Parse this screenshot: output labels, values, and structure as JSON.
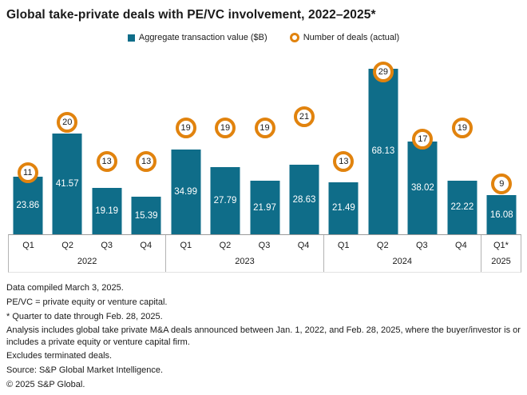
{
  "title": "Global take-private deals with PE/VC involvement, 2022–2025*",
  "legend": {
    "value_label": "Aggregate transaction value ($B)",
    "deals_label": "Number of deals (actual)"
  },
  "colors": {
    "bar_teal": "#0f6d89",
    "deal_ring_orange": "#e1830e",
    "text": "#1a1a1a",
    "divider": "#b3b3b3"
  },
  "chart_data": {
    "type": "bar",
    "title": "Global take-private deals with PE/VC involvement, 2022–2025*",
    "categories": [
      "Q1 2022",
      "Q2 2022",
      "Q3 2022",
      "Q4 2022",
      "Q1 2023",
      "Q2 2023",
      "Q3 2023",
      "Q4 2023",
      "Q1 2024",
      "Q2 2024",
      "Q3 2024",
      "Q4 2024",
      "Q1* 2025"
    ],
    "series": [
      {
        "name": "Aggregate transaction value ($B)",
        "type": "bar",
        "values": [
          23.86,
          41.57,
          19.19,
          15.39,
          34.99,
          27.79,
          21.97,
          28.63,
          21.49,
          68.13,
          38.02,
          22.22,
          16.08
        ]
      },
      {
        "name": "Number of deals (actual)",
        "type": "point",
        "values": [
          11,
          20,
          13,
          13,
          19,
          19,
          19,
          21,
          13,
          29,
          17,
          19,
          9
        ]
      }
    ],
    "groups": [
      {
        "year": "2022",
        "quarters": [
          {
            "label": "Q1",
            "value": "23.86",
            "deals": 11
          },
          {
            "label": "Q2",
            "value": "41.57",
            "deals": 20
          },
          {
            "label": "Q3",
            "value": "19.19",
            "deals": 13
          },
          {
            "label": "Q4",
            "value": "15.39",
            "deals": 13
          }
        ]
      },
      {
        "year": "2023",
        "quarters": [
          {
            "label": "Q1",
            "value": "34.99",
            "deals": 19
          },
          {
            "label": "Q2",
            "value": "27.79",
            "deals": 19
          },
          {
            "label": "Q3",
            "value": "21.97",
            "deals": 19
          },
          {
            "label": "Q4",
            "value": "28.63",
            "deals": 21
          }
        ]
      },
      {
        "year": "2024",
        "quarters": [
          {
            "label": "Q1",
            "value": "21.49",
            "deals": 13
          },
          {
            "label": "Q2",
            "value": "68.13",
            "deals": 29
          },
          {
            "label": "Q3",
            "value": "38.02",
            "deals": 17
          },
          {
            "label": "Q4",
            "value": "22.22",
            "deals": 19
          }
        ]
      },
      {
        "year": "2025",
        "quarters": [
          {
            "label": "Q1*",
            "value": "16.08",
            "deals": 9
          }
        ]
      }
    ],
    "legend_position": "top",
    "grid": false,
    "value_labels": "inside bars, white",
    "deal_labels": "orange ring badges positioned by count"
  },
  "footnotes": [
    "Data compiled March 3, 2025.",
    "PE/VC = private equity or venture capital.",
    "* Quarter to date through Feb. 28, 2025.",
    "Analysis includes global take private M&A deals announced between Jan. 1, 2022, and Feb. 28, 2025, where the buyer/investor is or includes a private equity or venture capital firm.",
    "Excludes terminated deals.",
    "Source: S&P Global Market Intelligence.",
    "© 2025 S&P Global."
  ]
}
